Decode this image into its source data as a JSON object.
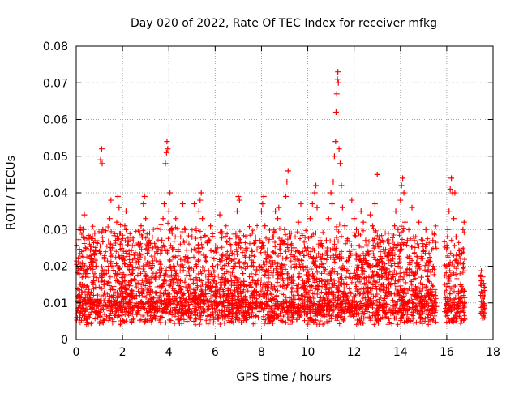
{
  "chart_data": {
    "type": "scatter",
    "title": "Day 020 of 2022, Rate Of TEC Index for receiver mfkg",
    "xlabel": "GPS time / hours",
    "ylabel": "ROTI / TECUs",
    "xlim": [
      0,
      18
    ],
    "ylim": [
      0,
      0.08
    ],
    "xticks": [
      0,
      2,
      4,
      6,
      8,
      10,
      12,
      14,
      16,
      18
    ],
    "yticks": [
      0,
      0.01,
      0.02,
      0.03,
      0.04,
      0.05,
      0.06,
      0.07,
      0.08
    ],
    "xtick_labels": [
      "0",
      "2",
      "4",
      "6",
      "8",
      "10",
      "12",
      "14",
      "16",
      "18"
    ],
    "ytick_labels": [
      "0",
      "0.01",
      "0.02",
      "0.03",
      "0.04",
      "0.05",
      "0.06",
      "0.07",
      "0.08"
    ],
    "grid": true,
    "marker": "plus",
    "color": "#ff0000",
    "series": [
      {
        "name": "ROTI",
        "points": [
          [
            0.05,
            0.008
          ],
          [
            0.1,
            0.012
          ],
          [
            0.15,
            0.006
          ],
          [
            0.2,
            0.015
          ],
          [
            0.25,
            0.02
          ],
          [
            0.3,
            0.03
          ],
          [
            0.35,
            0.034
          ],
          [
            0.4,
            0.025
          ],
          [
            0.45,
            0.01
          ],
          [
            0.5,
            0.018
          ],
          [
            0.55,
            0.013
          ],
          [
            0.6,
            0.009
          ],
          [
            0.65,
            0.022
          ],
          [
            0.7,
            0.028
          ],
          [
            0.75,
            0.016
          ],
          [
            0.8,
            0.029
          ],
          [
            0.85,
            0.02
          ],
          [
            0.9,
            0.011
          ],
          [
            0.95,
            0.007
          ],
          [
            1.0,
            0.024
          ],
          [
            1.05,
            0.049
          ],
          [
            1.1,
            0.052
          ],
          [
            1.12,
            0.048
          ],
          [
            1.15,
            0.03
          ],
          [
            1.2,
            0.015
          ],
          [
            1.3,
            0.009
          ],
          [
            1.4,
            0.02
          ],
          [
            1.45,
            0.033
          ],
          [
            1.5,
            0.038
          ],
          [
            1.55,
            0.025
          ],
          [
            1.6,
            0.012
          ],
          [
            1.7,
            0.018
          ],
          [
            1.75,
            0.032
          ],
          [
            1.8,
            0.039
          ],
          [
            1.85,
            0.036
          ],
          [
            1.9,
            0.026
          ],
          [
            1.95,
            0.014
          ],
          [
            2.0,
            0.022
          ],
          [
            2.1,
            0.031
          ],
          [
            2.15,
            0.035
          ],
          [
            2.2,
            0.02
          ],
          [
            2.3,
            0.01
          ],
          [
            2.4,
            0.016
          ],
          [
            2.5,
            0.023
          ],
          [
            2.6,
            0.012
          ],
          [
            2.7,
            0.026
          ],
          [
            2.8,
            0.031
          ],
          [
            2.85,
            0.028
          ],
          [
            2.9,
            0.037
          ],
          [
            2.95,
            0.039
          ],
          [
            3.0,
            0.033
          ],
          [
            3.1,
            0.021
          ],
          [
            3.2,
            0.013
          ],
          [
            3.3,
            0.025
          ],
          [
            3.4,
            0.017
          ],
          [
            3.5,
            0.01
          ],
          [
            3.6,
            0.019
          ],
          [
            3.7,
            0.027
          ],
          [
            3.75,
            0.033
          ],
          [
            3.8,
            0.037
          ],
          [
            3.85,
            0.048
          ],
          [
            3.9,
            0.051
          ],
          [
            3.92,
            0.054
          ],
          [
            3.95,
            0.052
          ],
          [
            4.0,
            0.035
          ],
          [
            4.05,
            0.04
          ],
          [
            4.1,
            0.03
          ],
          [
            4.15,
            0.025
          ],
          [
            4.2,
            0.02
          ],
          [
            4.3,
            0.033
          ],
          [
            4.4,
            0.024
          ],
          [
            4.5,
            0.016
          ],
          [
            4.6,
            0.037
          ],
          [
            4.7,
            0.03
          ],
          [
            4.8,
            0.022
          ],
          [
            4.9,
            0.014
          ],
          [
            5.0,
            0.028
          ],
          [
            5.1,
            0.037
          ],
          [
            5.2,
            0.02
          ],
          [
            5.3,
            0.035
          ],
          [
            5.35,
            0.038
          ],
          [
            5.4,
            0.04
          ],
          [
            5.45,
            0.033
          ],
          [
            5.5,
            0.023
          ],
          [
            5.6,
            0.015
          ],
          [
            5.7,
            0.027
          ],
          [
            5.8,
            0.031
          ],
          [
            5.9,
            0.02
          ],
          [
            6.0,
            0.012
          ],
          [
            6.1,
            0.025
          ],
          [
            6.2,
            0.034
          ],
          [
            6.3,
            0.029
          ],
          [
            6.4,
            0.018
          ],
          [
            6.5,
            0.012
          ],
          [
            6.6,
            0.022
          ],
          [
            6.7,
            0.016
          ],
          [
            6.8,
            0.02
          ],
          [
            6.9,
            0.028
          ],
          [
            6.95,
            0.035
          ],
          [
            7.0,
            0.039
          ],
          [
            7.05,
            0.038
          ],
          [
            7.1,
            0.025
          ],
          [
            7.2,
            0.018
          ],
          [
            7.3,
            0.011
          ],
          [
            7.4,
            0.02
          ],
          [
            7.5,
            0.015
          ],
          [
            7.6,
            0.024
          ],
          [
            7.7,
            0.012
          ],
          [
            7.8,
            0.019
          ],
          [
            7.9,
            0.027
          ],
          [
            8.0,
            0.035
          ],
          [
            8.05,
            0.037
          ],
          [
            8.1,
            0.039
          ],
          [
            8.15,
            0.031
          ],
          [
            8.2,
            0.022
          ],
          [
            8.3,
            0.014
          ],
          [
            8.4,
            0.02
          ],
          [
            8.5,
            0.028
          ],
          [
            8.6,
            0.035
          ],
          [
            8.7,
            0.033
          ],
          [
            8.75,
            0.036
          ],
          [
            8.8,
            0.026
          ],
          [
            8.9,
            0.018
          ],
          [
            9.0,
            0.03
          ],
          [
            9.05,
            0.039
          ],
          [
            9.1,
            0.043
          ],
          [
            9.15,
            0.046
          ],
          [
            9.2,
            0.029
          ],
          [
            9.3,
            0.017
          ],
          [
            9.4,
            0.025
          ],
          [
            9.5,
            0.02
          ],
          [
            9.6,
            0.032
          ],
          [
            9.7,
            0.037
          ],
          [
            9.75,
            0.029
          ],
          [
            9.8,
            0.02
          ],
          [
            9.9,
            0.014
          ],
          [
            10.0,
            0.025
          ],
          [
            10.1,
            0.033
          ],
          [
            10.2,
            0.037
          ],
          [
            10.3,
            0.04
          ],
          [
            10.35,
            0.042
          ],
          [
            10.4,
            0.036
          ],
          [
            10.5,
            0.02
          ],
          [
            10.6,
            0.016
          ],
          [
            10.7,
            0.022
          ],
          [
            10.8,
            0.027
          ],
          [
            10.9,
            0.033
          ],
          [
            11.0,
            0.04
          ],
          [
            11.05,
            0.037
          ],
          [
            11.1,
            0.043
          ],
          [
            11.15,
            0.05
          ],
          [
            11.2,
            0.054
          ],
          [
            11.22,
            0.062
          ],
          [
            11.25,
            0.067
          ],
          [
            11.28,
            0.071
          ],
          [
            11.3,
            0.073
          ],
          [
            11.32,
            0.07
          ],
          [
            11.35,
            0.052
          ],
          [
            11.4,
            0.048
          ],
          [
            11.45,
            0.042
          ],
          [
            11.5,
            0.036
          ],
          [
            11.6,
            0.031
          ],
          [
            11.7,
            0.027
          ],
          [
            11.8,
            0.024
          ],
          [
            11.9,
            0.038
          ],
          [
            12.0,
            0.033
          ],
          [
            12.1,
            0.03
          ],
          [
            12.2,
            0.029
          ],
          [
            12.3,
            0.035
          ],
          [
            12.4,
            0.032
          ],
          [
            12.5,
            0.027
          ],
          [
            12.6,
            0.024
          ],
          [
            12.7,
            0.034
          ],
          [
            12.8,
            0.031
          ],
          [
            12.9,
            0.037
          ],
          [
            13.0,
            0.045
          ],
          [
            13.1,
            0.028
          ],
          [
            13.2,
            0.022
          ],
          [
            13.3,
            0.018
          ],
          [
            13.4,
            0.014
          ],
          [
            13.5,
            0.013
          ],
          [
            13.7,
            0.025
          ],
          [
            13.75,
            0.031
          ],
          [
            13.8,
            0.035
          ],
          [
            13.9,
            0.03
          ],
          [
            14.0,
            0.038
          ],
          [
            14.05,
            0.042
          ],
          [
            14.1,
            0.044
          ],
          [
            14.15,
            0.04
          ],
          [
            14.2,
            0.032
          ],
          [
            14.3,
            0.027
          ],
          [
            14.4,
            0.022
          ],
          [
            14.5,
            0.036
          ],
          [
            14.6,
            0.027
          ],
          [
            14.7,
            0.021
          ],
          [
            14.8,
            0.032
          ],
          [
            14.9,
            0.017
          ],
          [
            15.0,
            0.024
          ],
          [
            15.1,
            0.03
          ],
          [
            15.2,
            0.019
          ],
          [
            15.3,
            0.013
          ],
          [
            15.4,
            0.027
          ],
          [
            15.5,
            0.012
          ],
          [
            15.55,
            0.009
          ],
          [
            16.0,
            0.02
          ],
          [
            16.05,
            0.03
          ],
          [
            16.1,
            0.035
          ],
          [
            16.15,
            0.041
          ],
          [
            16.2,
            0.044
          ],
          [
            16.25,
            0.04
          ],
          [
            16.3,
            0.033
          ],
          [
            16.35,
            0.04
          ],
          [
            16.4,
            0.028
          ],
          [
            16.5,
            0.021
          ],
          [
            16.6,
            0.015
          ],
          [
            16.7,
            0.03
          ],
          [
            16.75,
            0.032
          ],
          [
            17.5,
            0.016
          ],
          [
            17.55,
            0.012
          ],
          [
            17.6,
            0.007
          ]
        ]
      }
    ]
  }
}
